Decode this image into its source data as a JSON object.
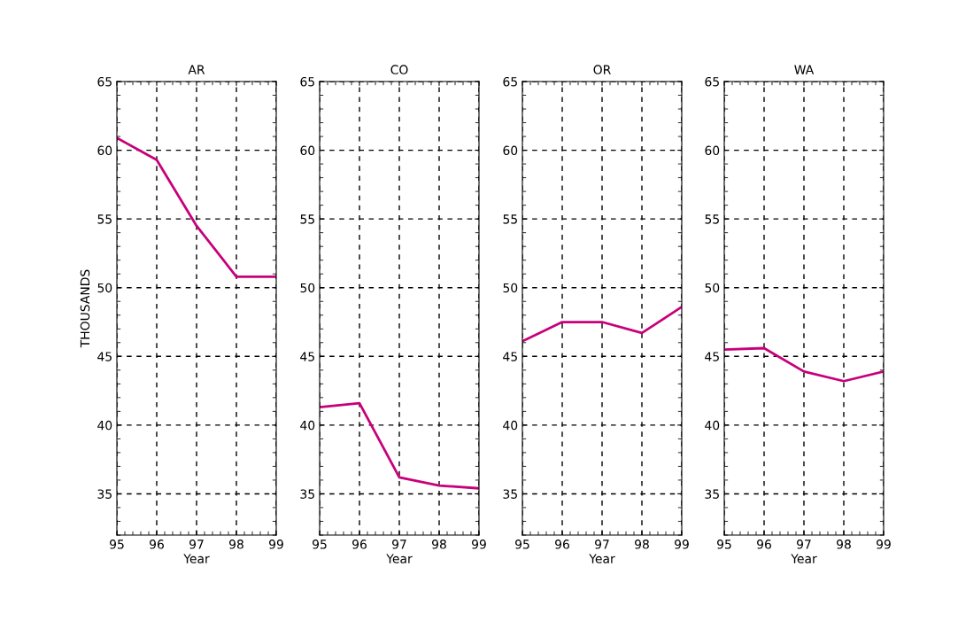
{
  "chart_data": [
    {
      "type": "line",
      "title": "AR",
      "xlabel": "Year",
      "ylabel": "THOUSANDS",
      "x": [
        95,
        96,
        97,
        98,
        99
      ],
      "series": [
        {
          "color": "#c8007a",
          "values": [
            60.9,
            59.3,
            54.5,
            50.8,
            50.8
          ]
        }
      ],
      "xlim": [
        95,
        99
      ],
      "xticks": [
        95,
        96,
        97,
        98,
        99
      ],
      "ylim": [
        32,
        65
      ],
      "yticks": [
        35,
        40,
        45,
        50,
        55,
        60,
        65
      ],
      "grid": true,
      "line_style": "solid"
    },
    {
      "type": "line",
      "title": "CO",
      "xlabel": "Year",
      "x": [
        95,
        96,
        97,
        98,
        99
      ],
      "series": [
        {
          "color": "#c8007a",
          "values": [
            41.3,
            41.6,
            36.2,
            35.6,
            35.4
          ]
        }
      ],
      "xlim": [
        95,
        99
      ],
      "xticks": [
        95,
        96,
        97,
        98,
        99
      ],
      "ylim": [
        32,
        65
      ],
      "yticks": [
        35,
        40,
        45,
        50,
        55,
        60,
        65
      ],
      "grid": true,
      "line_style": "solid"
    },
    {
      "type": "line",
      "title": "OR",
      "xlabel": "Year",
      "x": [
        95,
        96,
        97,
        98,
        99
      ],
      "series": [
        {
          "color": "#c8007a",
          "values": [
            46.1,
            47.5,
            47.5,
            46.7,
            48.6
          ]
        }
      ],
      "xlim": [
        95,
        99
      ],
      "xticks": [
        95,
        96,
        97,
        98,
        99
      ],
      "ylim": [
        32,
        65
      ],
      "yticks": [
        35,
        40,
        45,
        50,
        55,
        60,
        65
      ],
      "grid": true,
      "line_style": "solid"
    },
    {
      "type": "line",
      "title": "WA",
      "xlabel": "Year",
      "x": [
        95,
        96,
        97,
        98,
        99
      ],
      "series": [
        {
          "color": "#c8007a",
          "values": [
            45.5,
            45.6,
            43.9,
            43.2,
            43.9
          ]
        }
      ],
      "xlim": [
        95,
        99
      ],
      "xticks": [
        95,
        96,
        97,
        98,
        99
      ],
      "ylim": [
        32,
        65
      ],
      "yticks": [
        35,
        40,
        45,
        50,
        55,
        60,
        65
      ],
      "grid": true,
      "line_style": "solid"
    }
  ]
}
